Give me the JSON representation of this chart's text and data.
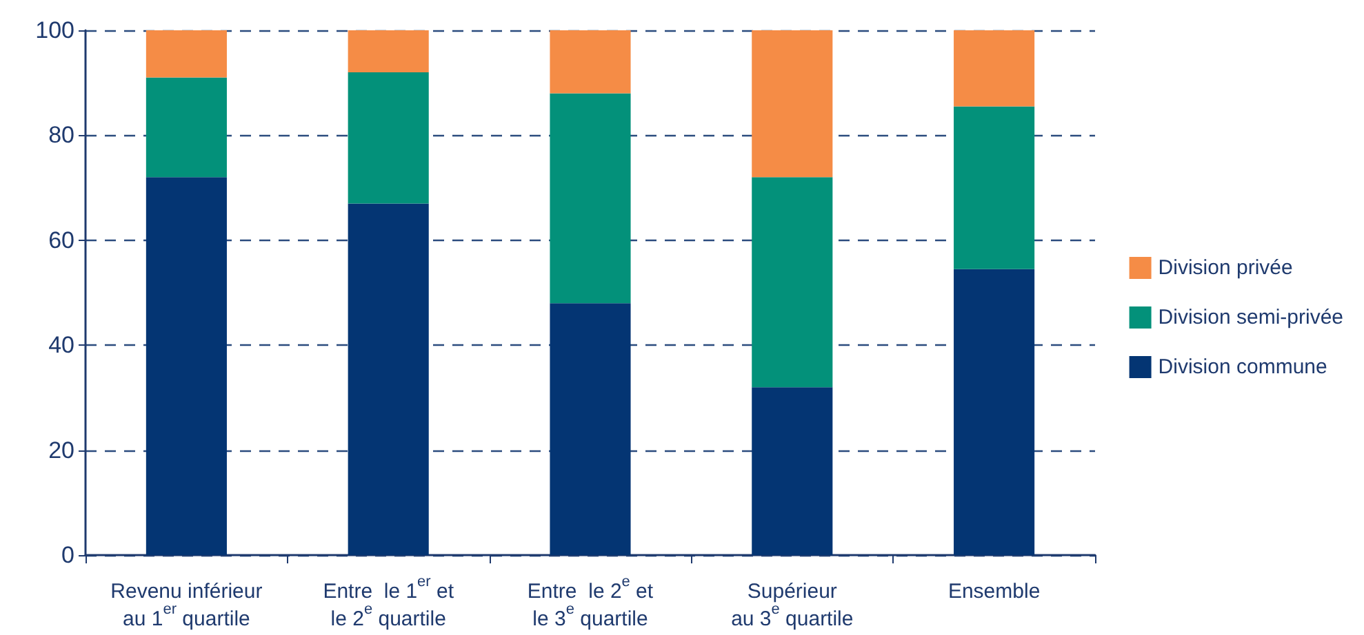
{
  "chart_data": {
    "type": "bar",
    "stacked": true,
    "categories": [
      "Revenu inférieur\nau 1$^{er}$ quartile",
      "Entre  le 1$^{er}$ et\nle 2$^{e}$ quartile",
      "Entre  le 2$^{e}$ et\nle 3$^{e}$ quartile",
      "Supérieur\nau 3$^{e}$ quartile",
      "Ensemble"
    ],
    "series": [
      {
        "name": "Division commune",
        "color": "#043573",
        "values": [
          72,
          67,
          48,
          32,
          54.5
        ]
      },
      {
        "name": "Division semi-privée",
        "color": "#03917a",
        "values": [
          19,
          25,
          40,
          40,
          31
        ]
      },
      {
        "name": "Division privée",
        "color": "#f58c46",
        "values": [
          9,
          8,
          12,
          28,
          14.5
        ]
      }
    ],
    "ylim": [
      0,
      100
    ],
    "yticks": [
      0,
      20,
      40,
      60,
      80,
      100
    ],
    "grid": "y",
    "legend": "right"
  }
}
